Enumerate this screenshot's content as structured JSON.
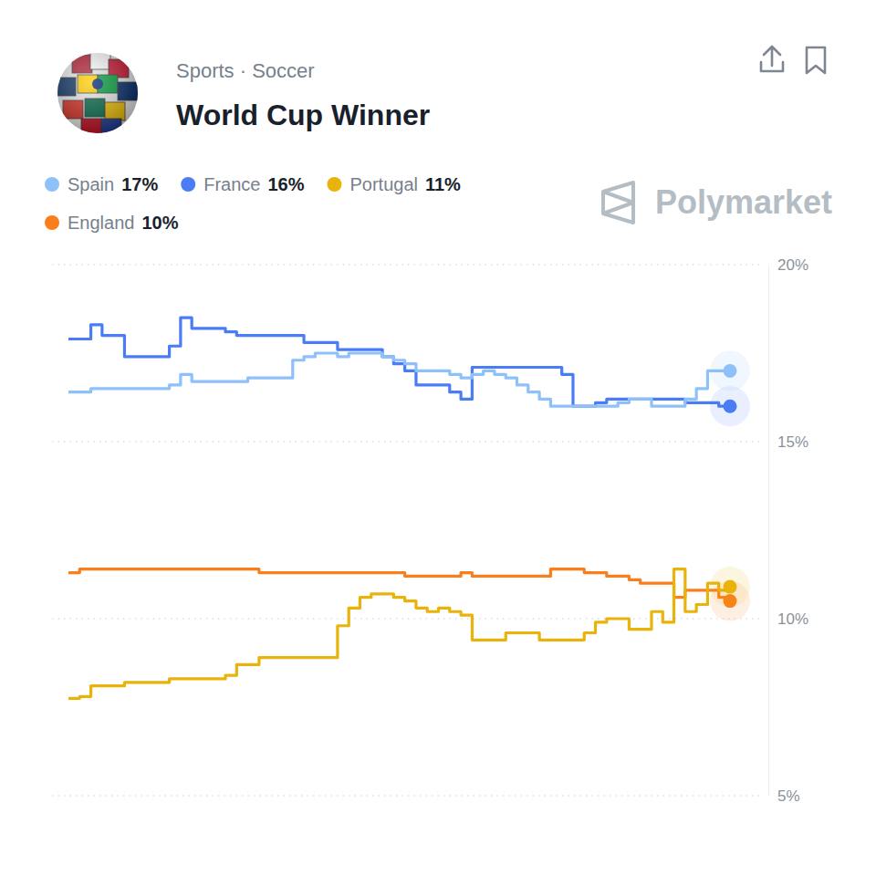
{
  "chart_data": {
    "type": "line",
    "title": "World Cup Winner",
    "subtitle": "Sports · Soccer",
    "brand": "Polymarket",
    "ylim": [
      5,
      20
    ],
    "yticks": [
      {
        "value": 5,
        "label": "5%"
      },
      {
        "value": 10,
        "label": "10%"
      },
      {
        "value": 15,
        "label": "15%"
      },
      {
        "value": 20,
        "label": "20%"
      }
    ],
    "grid": true,
    "legend": "top-left",
    "tick_labels": "y",
    "series": [
      {
        "name": "Spain",
        "color": "#8ec0fa",
        "current_label": "17%",
        "values": [
          16.4,
          16.4,
          16.5,
          16.5,
          16.5,
          16.5,
          16.5,
          16.5,
          16.5,
          16.6,
          16.9,
          16.7,
          16.7,
          16.7,
          16.7,
          16.7,
          16.8,
          16.8,
          16.8,
          16.8,
          17.3,
          17.4,
          17.5,
          17.5,
          17.4,
          17.5,
          17.5,
          17.5,
          17.4,
          17.3,
          17.2,
          17.0,
          17.0,
          17.0,
          16.9,
          16.8,
          16.9,
          17.0,
          16.9,
          16.8,
          16.6,
          16.4,
          16.2,
          16.0,
          16.0,
          16.0,
          16.0,
          16.0,
          16.0,
          16.1,
          16.2,
          16.2,
          16.0,
          16.0,
          16.0,
          16.2,
          16.5,
          17.0,
          17.0,
          17.0
        ]
      },
      {
        "name": "France",
        "color": "#4a7cf6",
        "current_label": "16%",
        "values": [
          17.9,
          17.9,
          18.3,
          18.0,
          18.0,
          17.4,
          17.4,
          17.4,
          17.4,
          17.7,
          18.5,
          18.2,
          18.2,
          18.2,
          18.1,
          18.0,
          18.0,
          18.0,
          18.0,
          18.0,
          18.0,
          17.8,
          17.8,
          17.8,
          17.6,
          17.6,
          17.6,
          17.6,
          17.4,
          17.2,
          17.0,
          16.6,
          16.6,
          16.6,
          16.4,
          16.2,
          17.1,
          17.1,
          17.1,
          17.1,
          17.1,
          17.1,
          17.1,
          17.1,
          16.9,
          16.0,
          16.0,
          16.1,
          16.2,
          16.2,
          16.2,
          16.2,
          16.2,
          16.2,
          16.2,
          16.1,
          16.1,
          16.1,
          16.0,
          16.0
        ]
      },
      {
        "name": "Portugal",
        "color": "#e9b30b",
        "current_label": "11%",
        "values": [
          7.75,
          7.8,
          8.1,
          8.1,
          8.1,
          8.2,
          8.2,
          8.2,
          8.2,
          8.3,
          8.3,
          8.3,
          8.3,
          8.3,
          8.4,
          8.7,
          8.7,
          8.9,
          8.9,
          8.9,
          8.9,
          8.9,
          8.9,
          8.9,
          9.8,
          10.3,
          10.6,
          10.7,
          10.7,
          10.6,
          10.5,
          10.3,
          10.2,
          10.3,
          10.2,
          10.1,
          9.4,
          9.4,
          9.4,
          9.6,
          9.6,
          9.6,
          9.4,
          9.4,
          9.4,
          9.4,
          9.6,
          9.9,
          10.0,
          10.0,
          9.7,
          9.7,
          10.2,
          9.9,
          11.4,
          10.2,
          10.4,
          11.0,
          10.8,
          10.9
        ]
      },
      {
        "name": "England",
        "color": "#fa7e1c",
        "current_label": "10%",
        "values": [
          11.3,
          11.4,
          11.4,
          11.4,
          11.4,
          11.4,
          11.4,
          11.4,
          11.4,
          11.4,
          11.4,
          11.4,
          11.4,
          11.4,
          11.4,
          11.4,
          11.4,
          11.3,
          11.3,
          11.3,
          11.3,
          11.3,
          11.3,
          11.3,
          11.3,
          11.3,
          11.3,
          11.3,
          11.3,
          11.3,
          11.2,
          11.2,
          11.2,
          11.2,
          11.2,
          11.3,
          11.2,
          11.2,
          11.2,
          11.2,
          11.2,
          11.2,
          11.2,
          11.4,
          11.4,
          11.4,
          11.3,
          11.3,
          11.2,
          11.2,
          11.1,
          11.0,
          11.0,
          11.0,
          10.6,
          10.8,
          10.8,
          10.8,
          10.6,
          10.5
        ]
      }
    ]
  }
}
